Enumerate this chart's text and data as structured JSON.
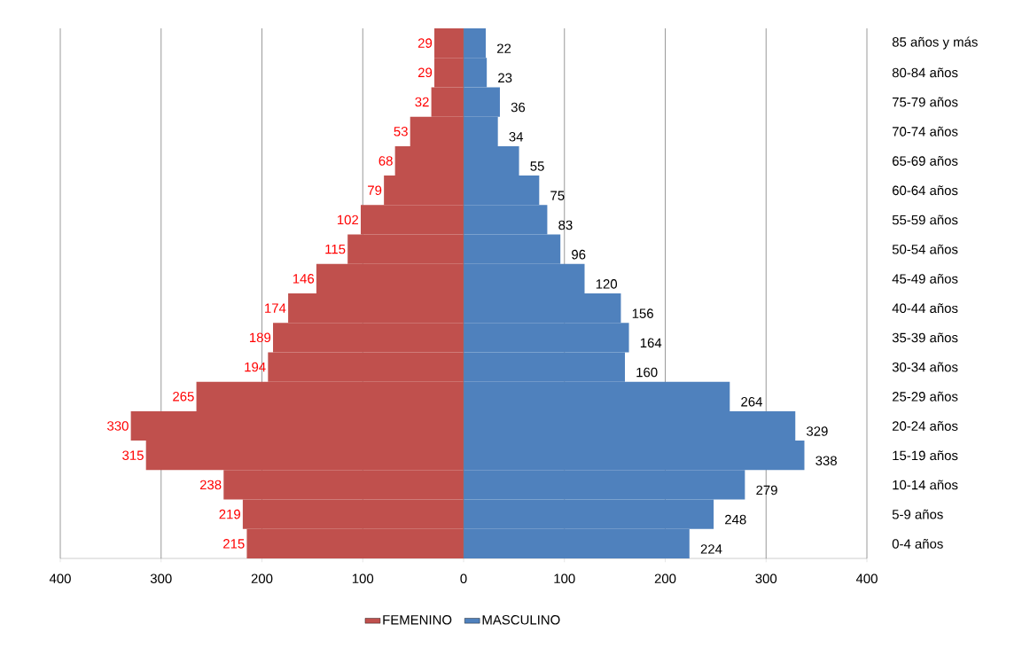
{
  "chart_data": {
    "type": "bar",
    "orientation": "horizontal",
    "categories": [
      "85 años y más",
      "80-84 años",
      "75-79 años",
      "70-74 años",
      "65-69 años",
      "60-64 años",
      "55-59 años",
      "50-54 años",
      "45-49 años",
      "40-44 años",
      "35-39 años",
      "30-34 años",
      "25-29 años",
      "20-24 años",
      "15-19 años",
      "10-14 años",
      "5-9 años",
      "0-4 años"
    ],
    "series": [
      {
        "name": "FEMENINO",
        "color": "#c0504d",
        "values": [
          29,
          29,
          32,
          53,
          68,
          79,
          102,
          115,
          146,
          174,
          189,
          194,
          265,
          330,
          315,
          238,
          219,
          215
        ],
        "base": [
          -29,
          -29,
          -32,
          -53,
          -68,
          -79,
          -102,
          -115,
          -146,
          -174,
          -189,
          -194,
          -265,
          -330,
          -315,
          -238,
          -219,
          -215
        ],
        "value_labels": [
          "29",
          "29",
          "32",
          "53",
          "68",
          "79",
          "102",
          "115",
          "146",
          "174",
          "189",
          "194",
          "265",
          "330",
          "315",
          "238",
          "219",
          "215"
        ]
      },
      {
        "name": "MASCULINO",
        "color": "#4f81bd",
        "values": [
          22,
          23,
          36,
          34,
          55,
          75,
          83,
          96,
          120,
          156,
          164,
          160,
          264,
          329,
          338,
          279,
          248,
          224
        ],
        "value_labels": [
          "22",
          "23",
          "36",
          "34",
          "55",
          "75",
          "83",
          "96",
          "120",
          "156",
          "164",
          "160",
          "264",
          "329",
          "338",
          "279",
          "248",
          "224"
        ]
      }
    ],
    "xlim": [
      -400,
      400
    ],
    "xticks": [
      {
        "value": -400,
        "label": "400"
      },
      {
        "value": -300,
        "label": "300"
      },
      {
        "value": -200,
        "label": "200"
      },
      {
        "value": -100,
        "label": "100"
      },
      0,
      100,
      200,
      300,
      400
    ],
    "grid": "x",
    "legend": "bottom"
  }
}
